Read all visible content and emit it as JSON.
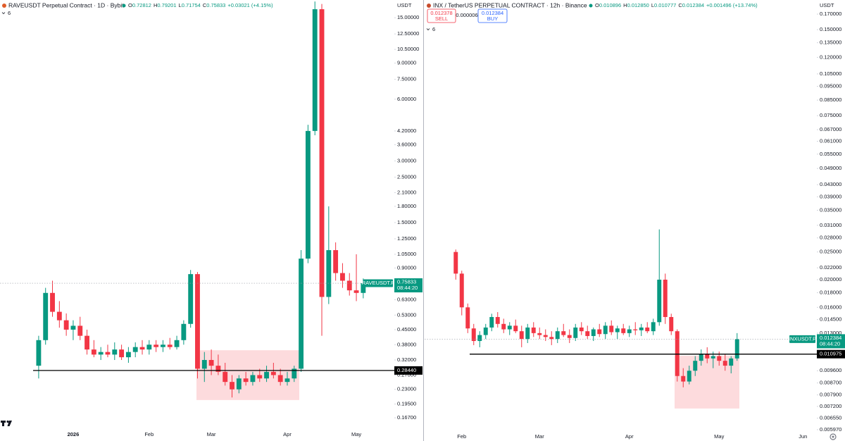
{
  "chart_data": [
    {
      "type": "candlestick",
      "title": "RAVEUSDT Perpetual Contract · 1D · Bybit",
      "ohlc": [
        {
          "key": "O",
          "value": 0.72812
        },
        {
          "key": "H",
          "value": 0.79201
        },
        {
          "key": "L",
          "value": 0.71754
        },
        {
          "key": "C",
          "value": 0.75833
        }
      ],
      "change": "+0.03021 (+4.15%)",
      "indicators": "6",
      "currency": "USDT",
      "symbol": "RAVEUSDT.P",
      "countdown": "08:44:20",
      "up_color": "#089981",
      "down_color": "#f23645",
      "log_scale": true,
      "grid": false,
      "ylim": [
        0.152,
        18.3
      ],
      "yticks": [
        {
          "value": 15,
          "label": "15.00000"
        },
        {
          "value": 12.5,
          "label": "12.50000"
        },
        {
          "value": 10.5,
          "label": "10.50000"
        },
        {
          "value": 9,
          "label": "9.00000"
        },
        {
          "value": 7.5,
          "label": "7.50000"
        },
        {
          "value": 6,
          "label": "6.00000"
        },
        {
          "value": 4.2,
          "label": "4.20000"
        },
        {
          "value": 3.6,
          "label": "3.60000"
        },
        {
          "value": 3,
          "label": "3.00000"
        },
        {
          "value": 2.5,
          "label": "2.50000"
        },
        {
          "value": 2.1,
          "label": "2.10000"
        },
        {
          "value": 1.8,
          "label": "1.80000"
        },
        {
          "value": 1.5,
          "label": "1.50000"
        },
        {
          "value": 1.25,
          "label": "1.25000"
        },
        {
          "value": 1.05,
          "label": "1.05000"
        },
        {
          "value": 0.9,
          "label": "0.90000"
        },
        {
          "value": 0.63,
          "label": "0.63000"
        },
        {
          "value": 0.53,
          "label": "0.53000"
        },
        {
          "value": 0.45,
          "label": "0.45000"
        },
        {
          "value": 0.38,
          "label": "0.38000"
        },
        {
          "value": 0.32,
          "label": "0.32000"
        },
        {
          "value": 0.27,
          "label": "0.27000"
        },
        {
          "value": 0.23,
          "label": "0.23000"
        },
        {
          "value": 0.195,
          "label": "0.19500"
        },
        {
          "value": 0.167,
          "label": "0.16700"
        }
      ],
      "support": {
        "value": 0.2844,
        "label": "0.28440"
      },
      "zone": {
        "low": 0.204,
        "high": 0.357
      },
      "categories": [
        null,
        null,
        null,
        null,
        null,
        "2026",
        null,
        null,
        null,
        null,
        null,
        null,
        null,
        null,
        null,
        null,
        "Feb",
        null,
        null,
        null,
        null,
        null,
        null,
        null,
        null,
        "Mar",
        null,
        null,
        null,
        null,
        null,
        null,
        null,
        null,
        null,
        null,
        "Apr",
        null,
        null,
        null,
        null,
        null,
        null,
        null,
        null,
        null,
        "May",
        null,
        null,
        null,
        null,
        null
      ],
      "open": [
        0.3,
        0.4,
        0.68,
        0.55,
        0.5,
        0.45,
        0.47,
        0.42,
        0.36,
        0.34,
        0.35,
        0.34,
        0.36,
        0.33,
        0.35,
        0.37,
        0.36,
        0.38,
        0.37,
        0.38,
        0.37,
        0.4,
        0.48,
        0.84,
        0.29,
        0.32,
        0.3,
        0.28,
        0.25,
        0.23,
        0.26,
        0.25,
        0.27,
        0.26,
        0.28,
        0.27,
        0.25,
        0.26,
        0.29,
        1.0,
        4.2,
        16.5,
        0.65,
        1.1,
        0.85,
        0.78,
        0.7,
        0.68,
        null,
        null,
        null,
        null
      ],
      "high": [
        0.42,
        0.72,
        0.78,
        0.62,
        0.54,
        0.5,
        0.52,
        0.45,
        0.4,
        0.37,
        0.38,
        0.39,
        0.38,
        0.37,
        0.39,
        0.4,
        0.4,
        0.4,
        0.4,
        0.41,
        0.42,
        0.5,
        0.88,
        0.86,
        0.35,
        0.36,
        0.34,
        0.31,
        0.27,
        0.27,
        0.28,
        0.28,
        0.29,
        0.3,
        0.31,
        0.29,
        0.28,
        0.3,
        1.1,
        4.5,
        18.0,
        17.5,
        1.8,
        1.2,
        0.95,
        0.85,
        1.05,
        0.8,
        null,
        null,
        null,
        null
      ],
      "low": [
        0.26,
        0.38,
        0.52,
        0.46,
        0.42,
        0.4,
        0.4,
        0.34,
        0.33,
        0.32,
        0.33,
        0.32,
        0.32,
        0.31,
        0.33,
        0.34,
        0.34,
        0.35,
        0.35,
        0.36,
        0.36,
        0.38,
        0.46,
        0.26,
        0.25,
        0.27,
        0.27,
        0.24,
        0.21,
        0.22,
        0.24,
        0.24,
        0.25,
        0.25,
        0.26,
        0.24,
        0.24,
        0.25,
        0.28,
        0.95,
        4.0,
        0.42,
        0.6,
        0.78,
        0.72,
        0.66,
        0.62,
        0.64,
        null,
        null,
        null,
        null
      ],
      "close": [
        0.4,
        0.68,
        0.55,
        0.5,
        0.45,
        0.47,
        0.42,
        0.36,
        0.34,
        0.35,
        0.34,
        0.36,
        0.33,
        0.35,
        0.37,
        0.36,
        0.38,
        0.37,
        0.38,
        0.37,
        0.4,
        0.48,
        0.84,
        0.29,
        0.32,
        0.3,
        0.28,
        0.25,
        0.23,
        0.26,
        0.25,
        0.27,
        0.26,
        0.28,
        0.27,
        0.25,
        0.26,
        0.29,
        1.0,
        4.2,
        16.5,
        0.65,
        1.1,
        0.85,
        0.78,
        0.7,
        0.68,
        0.75833,
        null,
        null,
        null,
        null
      ]
    },
    {
      "type": "candlestick",
      "title": "INX / TetherUS PERPETUAL CONTRACT · 12h · Binance",
      "ohlc": [
        {
          "key": "O",
          "value": 0.010896
        },
        {
          "key": "H",
          "value": {
            "value": 0.01285,
            "label": "0.012850"
          }
        },
        {
          "key": "L",
          "value": 0.010777
        },
        {
          "key": "C",
          "value": 0.012384
        }
      ],
      "change": "+0.001496 (+13.74%)",
      "indicators": "6",
      "currency": "USDT",
      "symbol": "INXUSDT.P",
      "countdown": "08:44:20",
      "sell": {
        "price": 0.012378,
        "label": "SELL"
      },
      "spread": 6e-06,
      "buy": {
        "price": 0.012384,
        "label": "BUY"
      },
      "up_color": "#089981",
      "down_color": "#f23645",
      "log_scale": true,
      "grid": false,
      "ylim": [
        0.0059,
        0.1905
      ],
      "yticks": [
        {
          "value": 0.17,
          "label": "0.170000"
        },
        {
          "value": 0.15,
          "label": "0.150000"
        },
        {
          "value": 0.135,
          "label": "0.135000"
        },
        {
          "value": 0.12,
          "label": "0.120000"
        },
        {
          "value": 0.105,
          "label": "0.105000"
        },
        {
          "value": 0.095,
          "label": "0.095000"
        },
        {
          "value": 0.085,
          "label": "0.085000"
        },
        {
          "value": 0.075,
          "label": "0.075000"
        },
        {
          "value": 0.067,
          "label": "0.067000"
        },
        {
          "value": 0.061,
          "label": "0.061000"
        },
        {
          "value": 0.055,
          "label": "0.055000"
        },
        {
          "value": 0.049,
          "label": "0.049000"
        },
        {
          "value": 0.043,
          "label": "0.043000"
        },
        {
          "value": 0.039,
          "label": "0.039000"
        },
        {
          "value": 0.035,
          "label": "0.035000"
        },
        {
          "value": 0.031,
          "label": "0.031000"
        },
        {
          "value": 0.028,
          "label": "0.028000"
        },
        {
          "value": 0.025,
          "label": "0.025000"
        },
        {
          "value": 0.022,
          "label": "0.022000"
        },
        {
          "value": 0.02,
          "label": "0.020000"
        },
        {
          "value": 0.018,
          "label": "0.018000"
        },
        {
          "value": 0.016,
          "label": "0.016000"
        },
        {
          "value": 0.0145,
          "label": "0.014500"
        },
        {
          "value": 0.013,
          "label": "0.013000"
        },
        {
          "value": 0.0096,
          "label": "0.009600"
        },
        {
          "value": 0.0087,
          "label": "0.008700"
        },
        {
          "value": 0.0079,
          "label": "0.007900"
        },
        {
          "value": 0.0072,
          "label": "0.007200"
        },
        {
          "value": 0.00655,
          "label": "0.006550"
        },
        {
          "value": 0.00597,
          "label": "0.005970"
        }
      ],
      "support": 0.010975,
      "zone": {
        "low": 0.00708,
        "high": 0.01083
      },
      "categories": [
        null,
        "Feb",
        null,
        null,
        null,
        null,
        null,
        null,
        null,
        null,
        null,
        null,
        null,
        null,
        "Mar",
        null,
        null,
        null,
        null,
        null,
        null,
        null,
        null,
        null,
        null,
        null,
        null,
        null,
        null,
        "Apr",
        null,
        null,
        null,
        null,
        null,
        null,
        null,
        null,
        null,
        null,
        null,
        null,
        null,
        null,
        "May",
        null,
        null,
        null,
        null,
        null,
        null,
        null,
        null,
        null,
        null,
        null,
        null,
        null,
        "Jun",
        null
      ],
      "open": [
        0.025,
        0.021,
        0.016,
        0.0135,
        0.0122,
        0.0128,
        0.0136,
        0.0148,
        0.014,
        0.0134,
        0.0138,
        0.0132,
        0.0124,
        0.0136,
        0.013,
        0.0128,
        0.0126,
        0.0124,
        0.0132,
        0.0128,
        0.0125,
        0.0136,
        0.0132,
        0.0127,
        0.0134,
        0.0129,
        0.0138,
        0.0131,
        0.0135,
        0.013,
        0.0134,
        0.0133,
        0.0136,
        0.0132,
        0.0142,
        0.02,
        0.0148,
        0.0132,
        0.0092,
        0.0088,
        0.0096,
        0.0104,
        0.011,
        0.0106,
        0.0108,
        0.0104,
        0.01,
        0.0106,
        null,
        null,
        null,
        null,
        null,
        null,
        null,
        null,
        null,
        null,
        null,
        null
      ],
      "high": [
        0.0255,
        0.0215,
        0.0165,
        0.014,
        0.0132,
        0.014,
        0.0152,
        0.0154,
        0.0146,
        0.0142,
        0.0145,
        0.0138,
        0.014,
        0.0142,
        0.0136,
        0.0134,
        0.0132,
        0.0136,
        0.014,
        0.0134,
        0.014,
        0.0142,
        0.0138,
        0.0136,
        0.014,
        0.0142,
        0.0144,
        0.0138,
        0.014,
        0.0138,
        0.0142,
        0.014,
        0.0142,
        0.0146,
        0.03,
        0.021,
        0.0152,
        0.0134,
        0.0098,
        0.01,
        0.0108,
        0.0114,
        0.0116,
        0.0112,
        0.0112,
        0.011,
        0.0108,
        0.013,
        null,
        null,
        null,
        null,
        null,
        null,
        null,
        null,
        null,
        null,
        null,
        null
      ],
      "low": [
        0.02,
        0.015,
        0.013,
        0.0118,
        0.0116,
        0.0124,
        0.0132,
        0.0136,
        0.013,
        0.0128,
        0.013,
        0.0116,
        0.012,
        0.0126,
        0.0124,
        0.0122,
        0.0118,
        0.012,
        0.0126,
        0.012,
        0.0122,
        0.0128,
        0.0124,
        0.0122,
        0.0126,
        0.0124,
        0.0128,
        0.0124,
        0.0128,
        0.0126,
        0.0128,
        0.0127,
        0.013,
        0.0128,
        0.0138,
        0.014,
        0.0128,
        0.0088,
        0.0084,
        0.0086,
        0.0092,
        0.01,
        0.0102,
        0.0098,
        0.01,
        0.0096,
        0.0094,
        0.0104,
        null,
        null,
        null,
        null,
        null,
        null,
        null,
        null,
        null,
        null,
        null,
        null
      ],
      "close": [
        0.021,
        0.016,
        0.0135,
        0.0122,
        0.0128,
        0.0136,
        0.0148,
        0.014,
        0.0134,
        0.0138,
        0.0132,
        0.0124,
        0.0136,
        0.013,
        0.0128,
        0.0126,
        0.0124,
        0.0132,
        0.0128,
        0.0125,
        0.0136,
        0.0132,
        0.0127,
        0.0134,
        0.0129,
        0.0138,
        0.0131,
        0.0135,
        0.013,
        0.0134,
        0.0133,
        0.0136,
        0.0132,
        0.0142,
        0.02,
        0.0148,
        0.0132,
        0.0092,
        0.0088,
        0.0096,
        0.0104,
        0.011,
        0.0106,
        0.0108,
        0.0104,
        0.01,
        0.0106,
        0.012384,
        null,
        null,
        null,
        null,
        null,
        null,
        null,
        null,
        null,
        null,
        null,
        null
      ]
    }
  ]
}
